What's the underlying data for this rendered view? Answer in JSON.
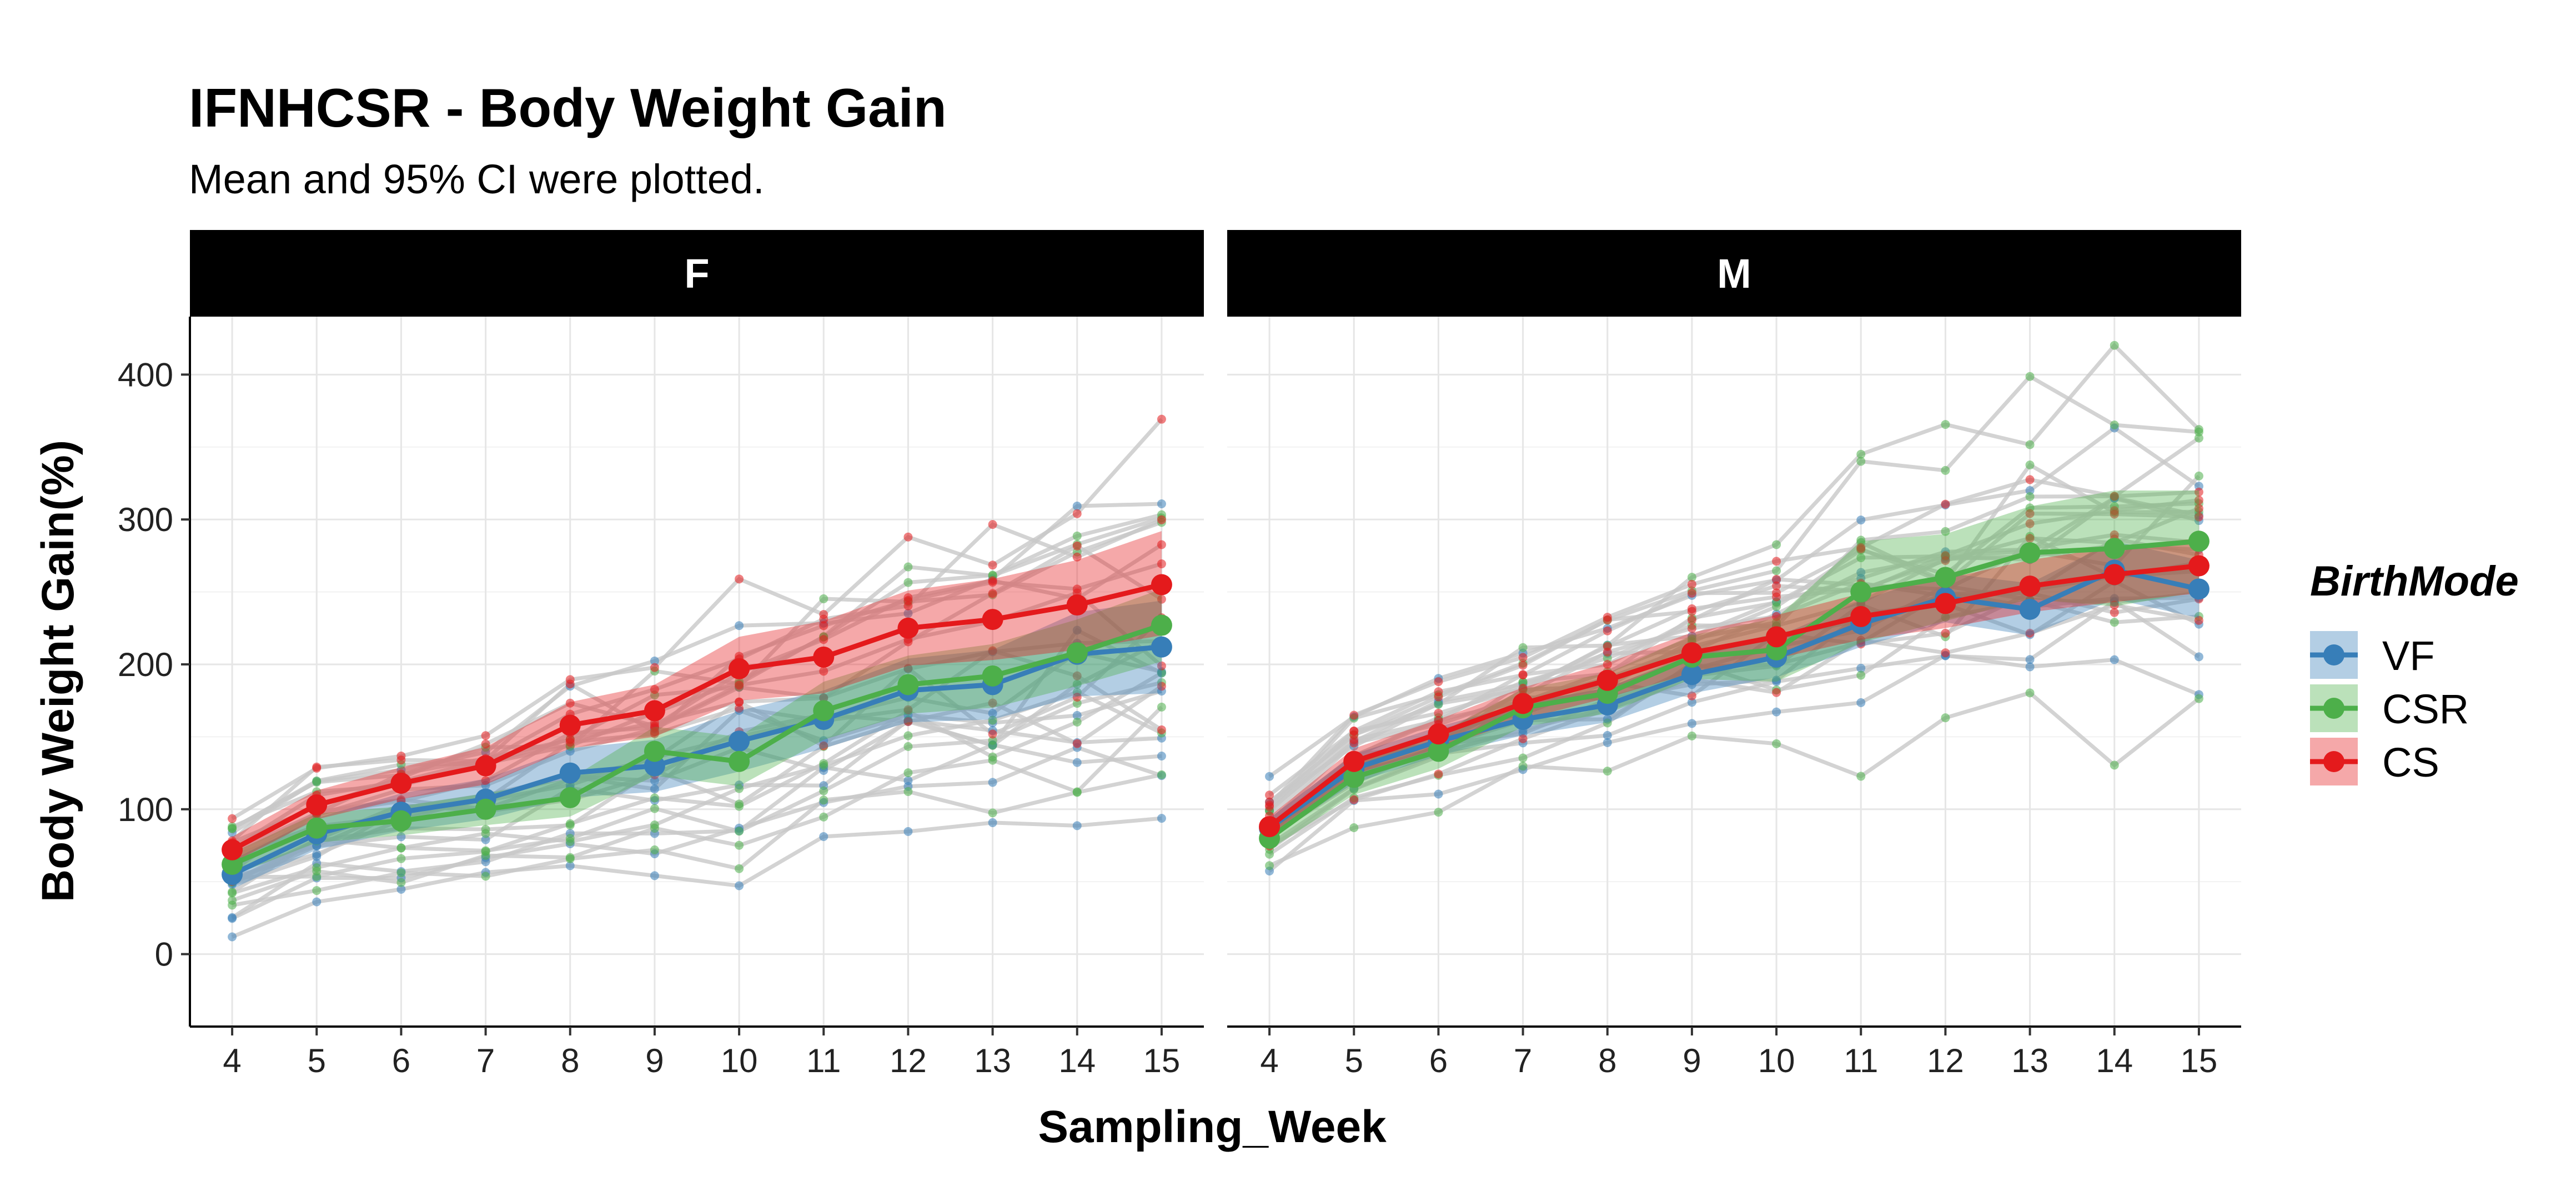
{
  "chart_data": {
    "type": "line",
    "title": "IFNHCSR - Body Weight Gain",
    "subtitle": "Mean and 95% CI were plotted.",
    "xlabel": "Sampling_Week",
    "ylabel": "Body Weight Gain(%)",
    "x": [
      4,
      5,
      6,
      7,
      8,
      9,
      10,
      11,
      12,
      13,
      14,
      15
    ],
    "xlim": [
      3.5,
      15.5
    ],
    "ylim": [
      -50,
      440
    ],
    "yticks": [
      0,
      100,
      200,
      300,
      400
    ],
    "grid": true,
    "legend": {
      "title": "BirthMode",
      "position": "right",
      "entries": [
        {
          "label": "VF",
          "color": "#377eb8"
        },
        {
          "label": "CSR",
          "color": "#4daf4a"
        },
        {
          "label": "CS",
          "color": "#e41a1c"
        }
      ]
    },
    "individual_line_color": "#c8c8c8",
    "panels": [
      {
        "label": "F",
        "series": [
          {
            "name": "VF",
            "color": "#377eb8",
            "values": [
              55,
              83,
              98,
              107,
              125,
              130,
              147,
              162,
              182,
              186,
              207,
              212
            ],
            "lower": [
              45,
              72,
              85,
              93,
              108,
              112,
              126,
              142,
              160,
              162,
              178,
              180
            ],
            "upper": [
              65,
              94,
              111,
              121,
              142,
              148,
              168,
              182,
              204,
              210,
              236,
              244
            ]
          },
          {
            "name": "CSR",
            "color": "#4daf4a",
            "values": [
              62,
              87,
              92,
              100,
              108,
              140,
              133,
              168,
              186,
              192,
              208,
              227
            ],
            "lower": [
              54,
              77,
              82,
              89,
              95,
              123,
              116,
              148,
              166,
              170,
              185,
              202
            ],
            "upper": [
              70,
              97,
              102,
              111,
              121,
              157,
              150,
              188,
              206,
              214,
              231,
              252
            ]
          },
          {
            "name": "CS",
            "color": "#e41a1c",
            "values": [
              72,
              103,
              118,
              130,
              158,
              168,
              197,
              205,
              225,
              231,
              241,
              255
            ],
            "lower": [
              63,
              93,
              107,
              117,
              142,
              150,
              175,
              180,
              199,
              203,
              210,
              220
            ],
            "upper": [
              81,
              113,
              129,
              143,
              174,
              186,
              219,
              230,
              251,
              259,
              272,
              292
            ]
          }
        ]
      },
      {
        "label": "M",
        "series": [
          {
            "name": "VF",
            "color": "#377eb8",
            "values": [
              87,
              128,
              147,
              162,
              172,
              193,
              205,
              228,
              246,
              238,
              265,
              252
            ],
            "lower": [
              80,
              118,
              137,
              151,
              160,
              180,
              191,
              212,
              229,
              220,
              245,
              232
            ],
            "upper": [
              94,
              138,
              157,
              173,
              184,
              206,
              219,
              244,
              263,
              256,
              285,
              272
            ]
          },
          {
            "name": "CSR",
            "color": "#4daf4a",
            "values": [
              80,
              122,
              140,
              170,
              180,
              205,
              210,
              250,
              260,
              277,
              280,
              285
            ],
            "lower": [
              72,
              110,
              128,
              157,
              166,
              190,
              188,
              215,
              230,
              245,
              240,
              250
            ],
            "upper": [
              88,
              134,
              152,
              183,
              194,
              220,
              232,
              285,
              290,
              309,
              320,
              320
            ]
          },
          {
            "name": "CS",
            "color": "#e41a1c",
            "values": [
              88,
              133,
              152,
              173,
              189,
              208,
              219,
              233,
              242,
              254,
              262,
              268
            ],
            "lower": [
              81,
              124,
              142,
              162,
              177,
              194,
              204,
              217,
              225,
              236,
              243,
              249
            ],
            "upper": [
              95,
              142,
              162,
              184,
              201,
              222,
              234,
              249,
              259,
              272,
              281,
              287
            ]
          }
        ]
      }
    ]
  }
}
